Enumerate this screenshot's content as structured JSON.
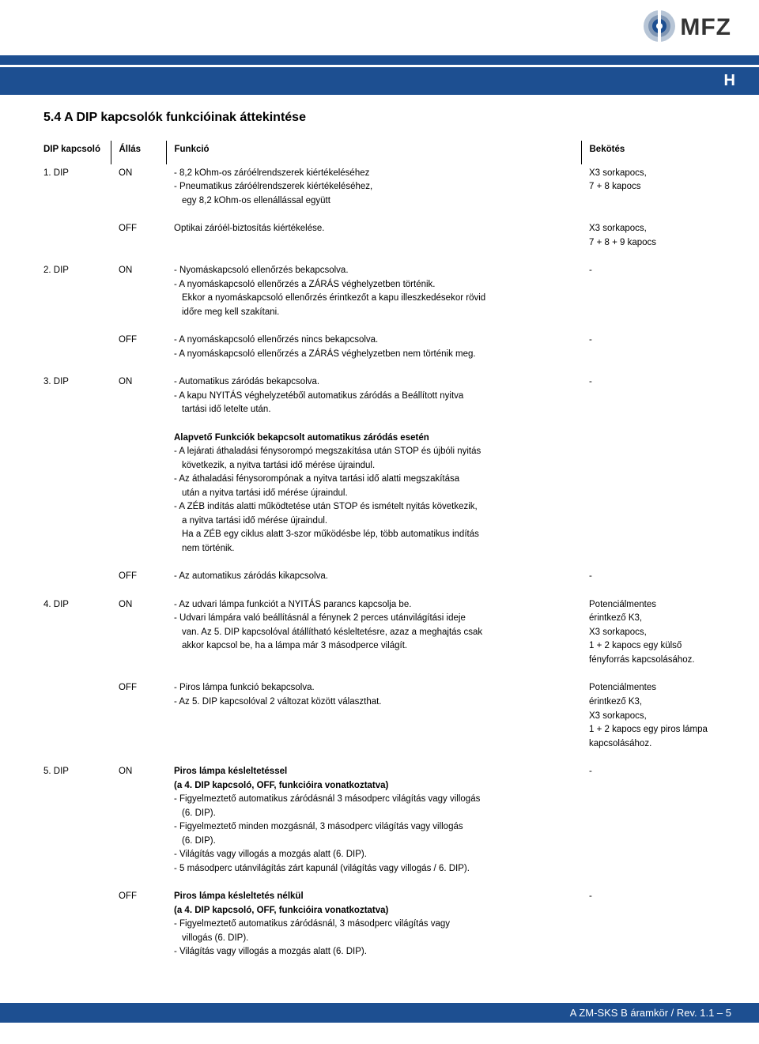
{
  "brand": {
    "name": "MFZ",
    "logo_outer": "#b7c5d6",
    "logo_mid": "#7e95b3",
    "logo_inner": "#1d4f91",
    "logo_core": "#ffffff"
  },
  "colors": {
    "bar": "#1d4f91",
    "text": "#000000"
  },
  "lang_marker": "H",
  "section_title": "5.4   A DIP kapcsolók funkcióinak áttekintése",
  "headers": {
    "dip": "DIP kapcsoló",
    "allas": "Állás",
    "funkcio": "Funkció",
    "bekotes": "Bekötés"
  },
  "rows": [
    {
      "dip": "1. DIP",
      "allas": "ON",
      "funk": [
        "- 8,2 kOhm-os záróélrendszerek kiértékeléséhez",
        "- Pneumatikus záróélrendszerek kiértékeléséhez,",
        "  egy 8,2 kOhm-os ellenállással együtt"
      ],
      "bek": [
        "X3 sorkapocs,",
        "7 + 8 kapocs"
      ]
    },
    {
      "dip": "",
      "allas": "OFF",
      "funk": [
        "Optikai záróél-biztosítás kiértékelése."
      ],
      "bek": [
        "X3 sorkapocs,",
        "7 + 8 + 9 kapocs"
      ]
    },
    {
      "dip": "2. DIP",
      "allas": "ON",
      "funk": [
        "- Nyomáskapcsoló ellenőrzés bekapcsolva.",
        "- A nyomáskapcsoló ellenőrzés a ZÁRÁS véghelyzetben történik.",
        "  Ekkor a nyomáskapcsoló ellenőrzés érintkezőt a kapu illeszkedésekor rövid",
        "  időre meg kell szakítani."
      ],
      "bek": [
        "-"
      ]
    },
    {
      "dip": "",
      "allas": "OFF",
      "funk": [
        "- A nyomáskapcsoló ellenőrzés nincs bekapcsolva.",
        "- A nyomáskapcsoló ellenőrzés a ZÁRÁS véghelyzetben nem történik meg."
      ],
      "bek": [
        "-"
      ]
    },
    {
      "dip": "3. DIP",
      "allas": "ON",
      "funk": [
        "- Automatikus záródás bekapcsolva.",
        "- A kapu NYITÁS véghelyzetéből automatikus záródás a Beállított nyitva",
        "  tartási idő letelte után."
      ],
      "bek": [
        "-"
      ]
    },
    {
      "dip": "",
      "allas": "",
      "funk_bold_first": true,
      "funk": [
        "Alapvető Funkciók bekapcsolt automatikus záródás esetén",
        "- A lejárati áthaladási fénysorompó megszakítása után STOP és újbóli nyitás",
        "  következik, a nyitva tartási idő mérése újraindul.",
        "- Az áthaladási fénysorompónak a nyitva tartási idő alatti megszakítása",
        "  után a nyitva tartási idő mérése újraindul.",
        "- A ZÉB indítás alatti működtetése után STOP és ismételt nyitás következik,",
        "  a nyitva tartási idő mérése újraindul.",
        "  Ha a ZÉB egy ciklus alatt 3-szor működésbe lép, több automatikus indítás",
        "  nem történik."
      ],
      "bek": []
    },
    {
      "dip": "",
      "allas": "OFF",
      "funk": [
        "- Az automatikus záródás kikapcsolva."
      ],
      "bek": [
        "-"
      ]
    },
    {
      "dip": "4. DIP",
      "allas": "ON",
      "funk": [
        "- Az udvari lámpa funkciót a NYITÁS parancs kapcsolja be.",
        "- Udvari lámpára való beállításnál a fénynek 2 perces utánvilágítási ideje",
        "  van. Az 5. DIP kapcsolóval átállítható késleltetésre, azaz a meghajtás csak",
        "  akkor kapcsol be, ha a lámpa már 3 másodperce világít."
      ],
      "bek": [
        "Potenciálmentes",
        "érintkező K3,",
        "X3 sorkapocs,",
        "1 + 2 kapocs egy külső",
        "fényforrás kapcsolásához."
      ]
    },
    {
      "dip": "",
      "allas": "OFF",
      "funk": [
        "- Piros lámpa funkció bekapcsolva.",
        "- Az 5. DIP kapcsolóval 2 változat között választhat."
      ],
      "bek": [
        "Potenciálmentes",
        "érintkező K3,",
        "X3 sorkapocs,",
        "1 + 2 kapocs egy piros lámpa",
        "kapcsolásához."
      ]
    },
    {
      "dip": "5. DIP",
      "allas": "ON",
      "funk_bold_first": true,
      "funk_bold_second": true,
      "funk": [
        "Piros lámpa késleltetéssel",
        "(a 4. DIP kapcsoló, OFF, funkcióira vonatkoztatva)",
        "- Figyelmeztető automatikus záródásnál 3 másodperc világítás vagy villogás",
        "  (6. DIP).",
        "- Figyelmeztető minden mozgásnál, 3 másodperc világítás vagy villogás",
        "  (6. DIP).",
        "- Világítás vagy villogás a mozgás alatt (6. DIP).",
        "- 5 másodperc utánvilágítás zárt kapunál (világítás vagy villogás / 6. DIP)."
      ],
      "bek": [
        "-"
      ]
    },
    {
      "dip": "",
      "allas": "OFF",
      "funk_bold_first": true,
      "funk_bold_second": true,
      "funk": [
        "Piros lámpa késleltetés nélkül",
        "(a 4. DIP kapcsoló, OFF, funkcióira vonatkoztatva)",
        "- Figyelmeztető automatikus záródásnál, 3 másodperc világítás vagy",
        "  villogás (6. DIP).",
        "- Világítás vagy villogás a mozgás alatt (6. DIP)."
      ],
      "bek": [
        "-"
      ]
    }
  ],
  "footer": "A ZM-SKS B áramkör / Rev. 1.1 – 5"
}
